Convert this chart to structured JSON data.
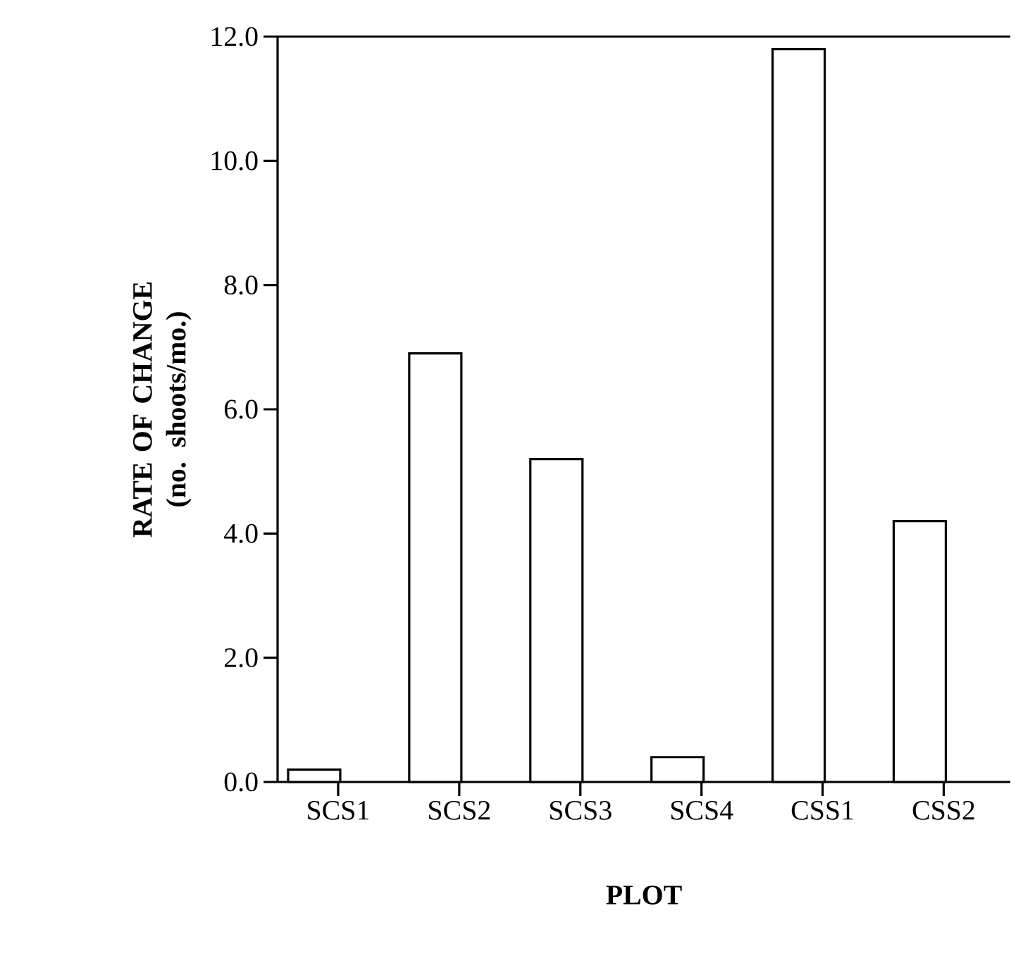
{
  "chart_data": {
    "type": "bar",
    "xlabel": "PLOT",
    "ylabel": "RATE OF CHANGE (no. shoots/mo.)",
    "categories": [
      "SCS1",
      "SCS2",
      "SCS3",
      "SCS4",
      "CSS1",
      "CSS2"
    ],
    "values": [
      0.2,
      6.9,
      5.2,
      0.4,
      11.8,
      4.2
    ],
    "color": "#000000",
    "ylim": [
      0,
      12
    ],
    "yticks": [
      {
        "value": 0,
        "label": "0.0"
      },
      {
        "value": 2,
        "label": "2.0"
      },
      {
        "value": 4,
        "label": "4.0"
      },
      {
        "value": 6,
        "label": "6.0"
      },
      {
        "value": 8,
        "label": "8.0"
      },
      {
        "value": 10,
        "label": "10.0"
      },
      {
        "value": 12,
        "label": "12.0"
      }
    ],
    "line_style": "solid"
  }
}
